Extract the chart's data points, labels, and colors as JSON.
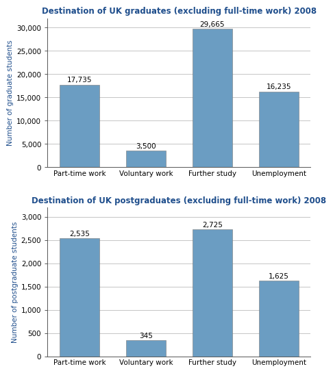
{
  "graduates": {
    "title": "Destination of UK graduates (excluding full-time work) 2008",
    "categories": [
      "Part-time work",
      "Voluntary work",
      "Further study",
      "Unemployment"
    ],
    "values": [
      17735,
      3500,
      29665,
      16235
    ],
    "labels": [
      "17,735",
      "3,500",
      "29,665",
      "16,235"
    ],
    "ylabel": "Number of graduate students",
    "ylim": [
      0,
      32000
    ],
    "yticks": [
      0,
      5000,
      10000,
      15000,
      20000,
      25000,
      30000
    ],
    "ytick_labels": [
      "0",
      "5,000",
      "10,000",
      "15,000",
      "20,000",
      "25,000",
      "30,000"
    ]
  },
  "postgraduates": {
    "title": "Destination of UK postgraduates (excluding full-time work) 2008",
    "categories": [
      "Part-time work",
      "Voluntary work",
      "Further study",
      "Unemployment"
    ],
    "values": [
      2535,
      345,
      2725,
      1625
    ],
    "labels": [
      "2,535",
      "345",
      "2,725",
      "1,625"
    ],
    "ylabel": "Number of postgraduate students",
    "ylim": [
      0,
      3200
    ],
    "yticks": [
      0,
      500,
      1000,
      1500,
      2000,
      2500,
      3000
    ],
    "ytick_labels": [
      "0",
      "500",
      "1,000",
      "1,500",
      "2,000",
      "2,500",
      "3,000"
    ]
  },
  "bar_color": "#6B9DC2",
  "title_color": "#1F4E8C",
  "ylabel_color": "#1F4E8C",
  "bg_color": "#ffffff",
  "title_fontsize": 8.5,
  "label_fontsize": 7.5,
  "ylabel_fontsize": 7.5,
  "tick_fontsize": 7.5
}
